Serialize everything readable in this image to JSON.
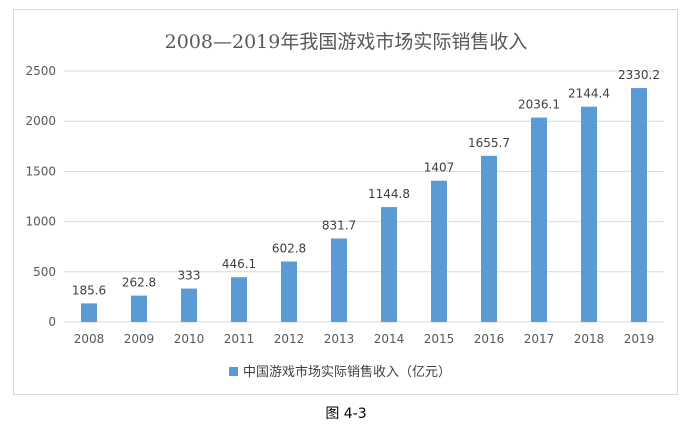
{
  "chart_data": {
    "type": "bar",
    "title": "2008—2019年我国游戏市场实际销售收入",
    "categories": [
      "2008",
      "2009",
      "2010",
      "2011",
      "2012",
      "2013",
      "2014",
      "2015",
      "2016",
      "2017",
      "2018",
      "2019"
    ],
    "series": [
      {
        "name": "中国游戏市场实际销售收入（亿元）",
        "values": [
          185.6,
          262.8,
          333,
          446.1,
          602.8,
          831.7,
          1144.8,
          1407,
          1655.7,
          2036.1,
          2144.4,
          2330.2
        ],
        "labels": [
          "185.6",
          "262.8",
          "333",
          "446.1",
          "602.8",
          "831.7",
          "1144.8",
          "1407",
          "1655.7",
          "2036.1",
          "2144.4",
          "2330.2"
        ]
      }
    ],
    "yticks": [
      "0",
      "500",
      "1000",
      "1500",
      "2000",
      "2500"
    ],
    "ylim": [
      0,
      2500
    ],
    "grid": true,
    "legend": "bottom",
    "bar_color": "#5b9bd5",
    "grid_color": "#d9d9d9"
  },
  "caption": "图 4-3"
}
